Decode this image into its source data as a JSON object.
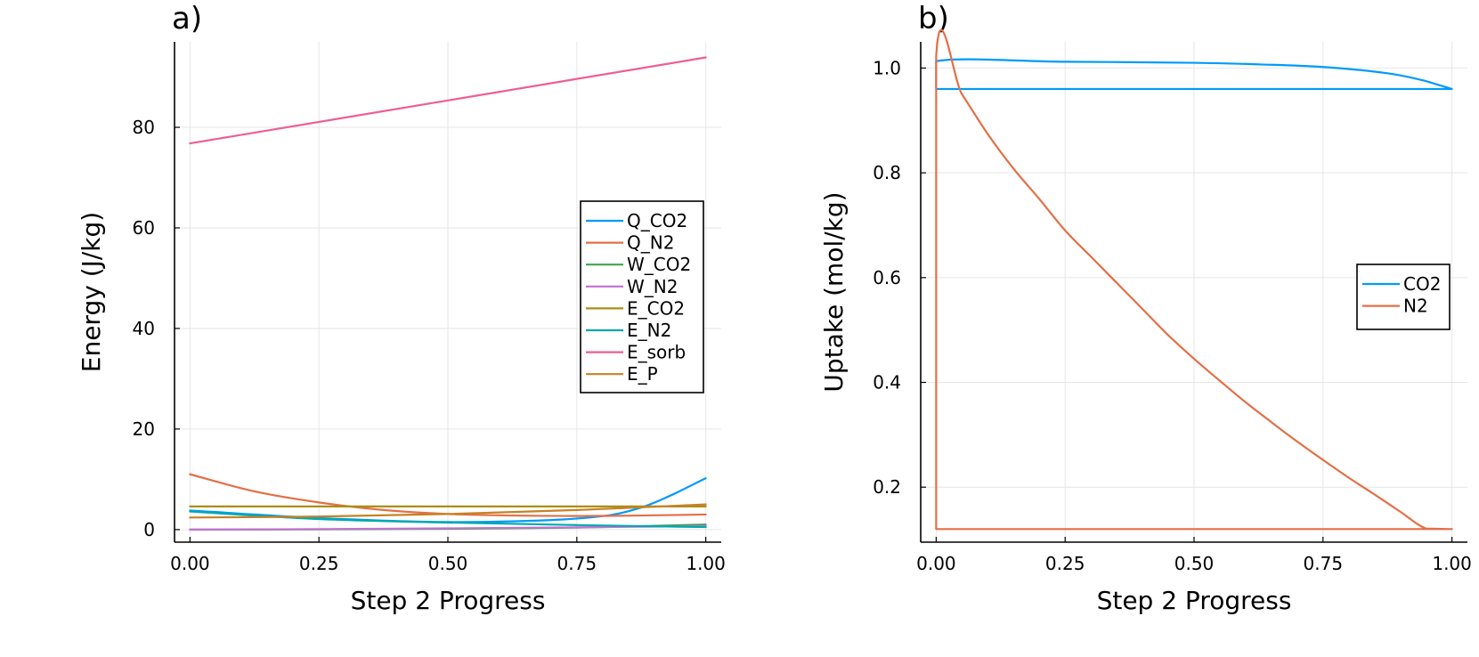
{
  "chart_data": [
    {
      "type": "line",
      "title": "a)",
      "xlabel": "Step 2 Progress",
      "ylabel": "Energy (J/kg)",
      "xlim": [
        -0.03,
        1.03
      ],
      "ylim": [
        -2.5,
        97
      ],
      "xticks": [
        0,
        0.25,
        0.5,
        0.75,
        1
      ],
      "xtick_labels": [
        "0.00",
        "0.25",
        "0.50",
        "0.75",
        "1.00"
      ],
      "yticks": [
        0,
        20,
        40,
        60,
        80
      ],
      "ytick_labels": [
        "0",
        "20",
        "40",
        "60",
        "80"
      ],
      "grid": true,
      "legend_position": "right",
      "series": [
        {
          "name": "Q_CO2",
          "color": "#009AFA",
          "x": [
            0,
            0.25,
            0.5,
            0.75,
            0.875,
            1
          ],
          "y": [
            3.8,
            2.3,
            1.5,
            2.2,
            4.4,
            10.2
          ]
        },
        {
          "name": "Q_N2",
          "color": "#E36F47",
          "x": [
            0,
            0.125,
            0.25,
            0.375,
            0.5,
            0.625,
            0.75,
            0.875,
            1
          ],
          "y": [
            11.0,
            7.6,
            5.4,
            3.9,
            3.1,
            2.8,
            2.7,
            2.8,
            3.0
          ]
        },
        {
          "name": "W_CO2",
          "color": "#3EA44E",
          "x": [
            0,
            0.25,
            0.5,
            0.75,
            1
          ],
          "y": [
            0.0,
            0.05,
            0.15,
            0.4,
            1.0
          ]
        },
        {
          "name": "W_N2",
          "color": "#C371D2",
          "x": [
            0,
            0.25,
            0.5,
            0.75,
            1
          ],
          "y": [
            0.0,
            0.1,
            0.25,
            0.45,
            0.7
          ]
        },
        {
          "name": "E_CO2",
          "color": "#AC8D18",
          "x": [
            0,
            0.25,
            0.5,
            0.75,
            1
          ],
          "y": [
            4.6,
            4.6,
            4.6,
            4.6,
            4.6
          ]
        },
        {
          "name": "E_N2",
          "color": "#00A9AD",
          "x": [
            0,
            0.25,
            0.5,
            0.75,
            1
          ],
          "y": [
            3.6,
            2.1,
            1.4,
            0.9,
            0.5
          ]
        },
        {
          "name": "E_sorb",
          "color": "#ED5E93",
          "x": [
            0,
            1
          ],
          "y": [
            76.8,
            93.9
          ]
        },
        {
          "name": "E_P",
          "color": "#C68225",
          "x": [
            0,
            0.25,
            0.5,
            0.75,
            1
          ],
          "y": [
            2.4,
            2.6,
            3.1,
            3.9,
            5.0
          ]
        }
      ]
    },
    {
      "type": "line",
      "title": "b)",
      "xlabel": "Step 2 Progress",
      "ylabel": "Uptake (mol/kg)",
      "xlim": [
        -0.03,
        1.03
      ],
      "ylim": [
        0.095,
        1.05
      ],
      "xticks": [
        0,
        0.25,
        0.5,
        0.75,
        1
      ],
      "xtick_labels": [
        "0.00",
        "0.25",
        "0.50",
        "0.75",
        "1.00"
      ],
      "yticks": [
        0.2,
        0.4,
        0.6,
        0.8,
        1.0
      ],
      "ytick_labels": [
        "0.2",
        "0.4",
        "0.6",
        "0.8",
        "1.0"
      ],
      "grid": true,
      "legend_position": "right",
      "series": [
        {
          "name": "CO2",
          "color": "#009AFA",
          "x": [
            0,
            0.0,
            0.25,
            0.5,
            0.625,
            0.75,
            0.875,
            0.95,
            1,
            0,
            0
          ],
          "y": [
            0.96,
            1.013,
            1.012,
            1.01,
            1.007,
            1.002,
            0.99,
            0.975,
            0.96,
            0.96,
            0.96
          ]
        },
        {
          "name": "N2",
          "color": "#E36F47",
          "x": [
            0,
            0,
            0.05,
            0.1,
            0.15,
            0.2,
            0.25,
            0.3,
            0.35,
            0.4,
            0.45,
            0.5,
            0.55,
            0.6,
            0.65,
            0.7,
            0.75,
            0.8,
            0.85,
            0.9,
            0.95,
            1,
            0,
            0
          ],
          "y": [
            0.12,
            1.022,
            0.95,
            0.874,
            0.808,
            0.75,
            0.69,
            0.64,
            0.59,
            0.54,
            0.49,
            0.445,
            0.403,
            0.362,
            0.324,
            0.287,
            0.252,
            0.218,
            0.186,
            0.153,
            0.121,
            0.12,
            0.12,
            0.12
          ]
        }
      ]
    }
  ]
}
